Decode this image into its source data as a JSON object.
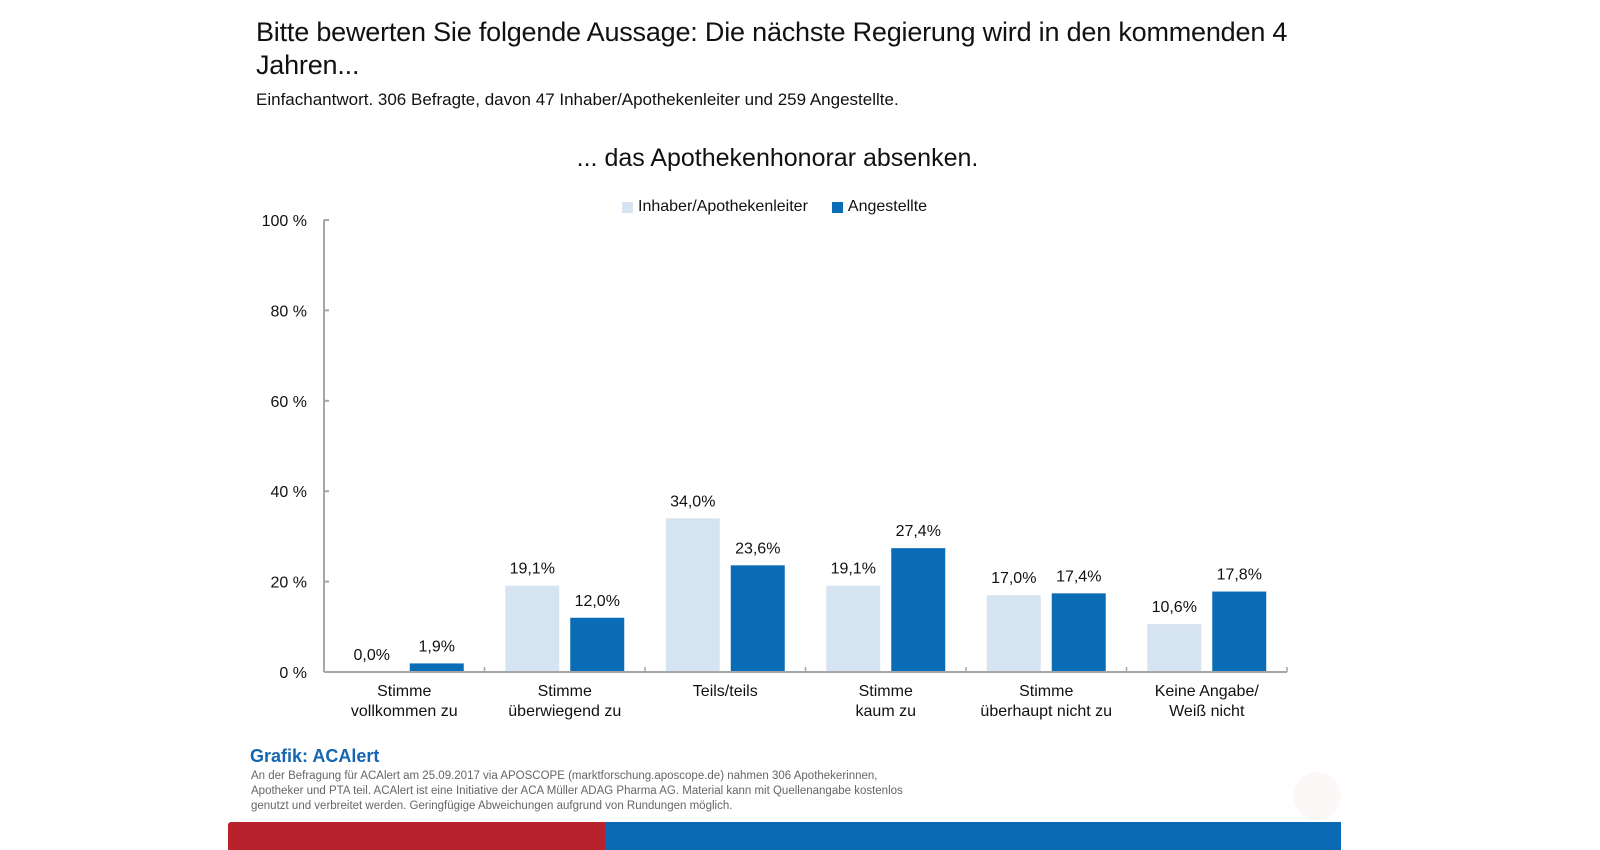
{
  "header": {
    "title": "Bitte bewerten Sie folgende Aussage: Die nächste Regierung wird in den kommenden 4 Jahren...",
    "subtitle": "Einfachantwort. 306 Befragte, davon 47 Inhaber/Apothekenleiter und 259 Angestellte."
  },
  "chart_data": {
    "type": "bar",
    "title": "... das Apothekenhonorar absenken.",
    "xlabel": "",
    "ylabel": "",
    "ylim": [
      0,
      100
    ],
    "yticks": [
      0,
      20,
      40,
      60,
      80,
      100
    ],
    "ytick_labels": [
      "0 %",
      "20 %",
      "40 %",
      "60 %",
      "80 %",
      "100 %"
    ],
    "grid": false,
    "legend_position": "top-center",
    "categories": [
      [
        "Stimme",
        "vollkommen zu"
      ],
      [
        "Stimme",
        "überwiegend zu"
      ],
      [
        "Teils/teils"
      ],
      [
        "Stimme",
        "kaum zu"
      ],
      [
        "Stimme",
        "überhaupt nicht zu"
      ],
      [
        "Keine Angabe/",
        "Weiß nicht"
      ]
    ],
    "series": [
      {
        "name": "Inhaber/Apothekenleiter",
        "color": "#d6e3f0",
        "values": [
          0.0,
          19.1,
          34.0,
          19.1,
          17.0,
          10.6
        ],
        "labels": [
          "0,0%",
          "19,1%",
          "34,0%",
          "19,1%",
          "17,0%",
          "10,6%"
        ]
      },
      {
        "name": "Angestellte",
        "color": "#0a6cb5",
        "values": [
          1.9,
          12.0,
          23.6,
          27.4,
          17.4,
          17.8
        ],
        "labels": [
          "1,9%",
          "12,0%",
          "23,6%",
          "27,4%",
          "17,4%",
          "17,8%"
        ]
      }
    ]
  },
  "footer": {
    "source_title": "Grafik: ACAlert",
    "source_text": "An der Befragung für ACAlert am 25.09.2017 via APOSCOPE (marktforschung.aposcope.de) nahmen 306 Apothekerinnen, Apotheker und PTA teil. ACAlert ist eine Initiative der ACA Müller ADAG Pharma AG. Material kann mit Quellenangabe kostenlos genutzt und verbreitet werden. Geringfügige Abweichungen aufgrund von Rundungen möglich.",
    "brand_colors": {
      "red": "#b8222c",
      "blue": "#0a69b3"
    }
  }
}
